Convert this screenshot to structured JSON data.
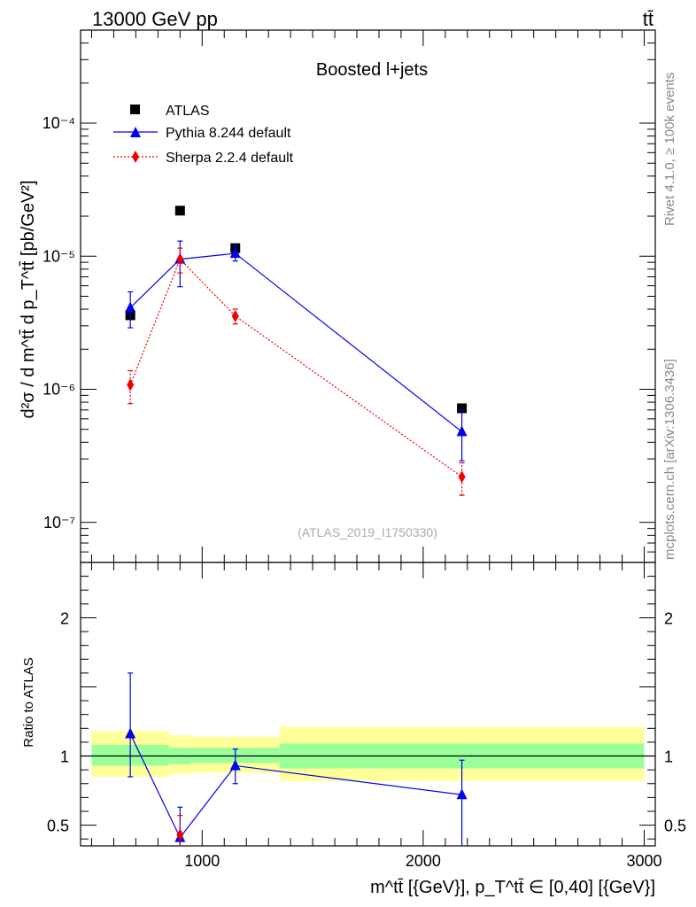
{
  "header": {
    "left": "13000 GeV pp",
    "right": "tt̄"
  },
  "side_labels": {
    "rivet": "Rivet 4.1.0, ≥ 100k events",
    "mcplots": "mcplots.cern.ch [arXiv:1306.3436]"
  },
  "chart_data": [
    {
      "type": "scatter",
      "panel": "main",
      "title": "Boosted l+jets",
      "watermark": "(ATLAS_2019_I1750330)",
      "ylabel": "d²σ / d m^tt̄ d p_T^tt̄ [pb/GeV²]",
      "yscale": "log",
      "ylim": [
        5e-08,
        0.0005
      ],
      "xlim": [
        450,
        3050
      ],
      "y_ticks": [
        {
          "value": 1e-07,
          "label": "10⁻⁷"
        },
        {
          "value": 1e-06,
          "label": "10⁻⁶"
        },
        {
          "value": 1e-05,
          "label": "10⁻⁵"
        },
        {
          "value": 0.0001,
          "label": "10⁻⁴"
        }
      ],
      "legend": [
        "ATLAS",
        "Pythia 8.244 default",
        "Sherpa 2.2.4 default"
      ],
      "series": [
        {
          "name": "ATLAS",
          "color": "#000000",
          "marker": "square",
          "points": [
            {
              "x": 675,
              "y": 3.6e-06
            },
            {
              "x": 900,
              "y": 2.2e-05
            },
            {
              "x": 1150,
              "y": 1.15e-05
            },
            {
              "x": 2175,
              "y": 7.2e-07
            }
          ]
        },
        {
          "name": "Pythia 8.244 default",
          "color": "#0000ee",
          "marker": "triangle",
          "line": "solid",
          "points": [
            {
              "x": 675,
              "y": 4.1e-06,
              "ylo": 2.9e-06,
              "yhi": 5.4e-06
            },
            {
              "x": 900,
              "y": 9.5e-06,
              "ylo": 5.9e-06,
              "yhi": 1.3e-05
            },
            {
              "x": 1150,
              "y": 1.05e-05,
              "ylo": 9.2e-06,
              "yhi": 1.2e-05
            },
            {
              "x": 2175,
              "y": 4.8e-07,
              "ylo": 2.9e-07,
              "yhi": 7e-07
            }
          ]
        },
        {
          "name": "Sherpa 2.2.4 default",
          "color": "#ee0000",
          "marker": "diamond",
          "line": "dotted",
          "points": [
            {
              "x": 675,
              "y": 1.08e-06,
              "ylo": 7.8e-07,
              "yhi": 1.38e-06
            },
            {
              "x": 900,
              "y": 9.5e-06,
              "ylo": 7.5e-06,
              "yhi": 1.15e-05
            },
            {
              "x": 1150,
              "y": 3.55e-06,
              "ylo": 3.1e-06,
              "yhi": 4e-06
            },
            {
              "x": 2175,
              "y": 2.2e-07,
              "ylo": 1.6e-07,
              "yhi": 2.8e-07
            }
          ]
        }
      ]
    },
    {
      "type": "line",
      "panel": "ratio",
      "ylabel": "Ratio to ATLAS",
      "xlabel": "m^tt̄ [{GeV}], p_T^tt̄ ∈ [0,40] [{GeV}]",
      "ylim": [
        0.35,
        2.4
      ],
      "xlim": [
        450,
        3050
      ],
      "y_ticks": [
        {
          "value": 0.5,
          "label": "0.5"
        },
        {
          "value": 1,
          "label": "1"
        },
        {
          "value": 2,
          "label": "2"
        }
      ],
      "x_ticks": [
        {
          "value": 1000,
          "label": "1000"
        },
        {
          "value": 2000,
          "label": "2000"
        },
        {
          "value": 3000,
          "label": "3000"
        }
      ],
      "bands": [
        {
          "x0": 500,
          "x1": 850,
          "yellow": [
            0.85,
            1.18
          ],
          "green": [
            0.93,
            1.08
          ]
        },
        {
          "x0": 850,
          "x1": 950,
          "yellow": [
            0.87,
            1.15
          ],
          "green": [
            0.94,
            1.06
          ]
        },
        {
          "x0": 950,
          "x1": 1350,
          "yellow": [
            0.88,
            1.14
          ],
          "green": [
            0.95,
            1.06
          ]
        },
        {
          "x0": 1350,
          "x1": 3000,
          "yellow": [
            0.82,
            1.21
          ],
          "green": [
            0.91,
            1.09
          ]
        }
      ],
      "series": [
        {
          "name": "Pythia 8.244 default",
          "color": "#0000ee",
          "marker": "triangle",
          "points": [
            {
              "x": 675,
              "y": 1.16,
              "ylo": 0.85,
              "yhi": 1.6
            },
            {
              "x": 900,
              "y": 0.41,
              "ylo": 0.3,
              "yhi": 0.63
            },
            {
              "x": 1150,
              "y": 0.93,
              "ylo": 0.8,
              "yhi": 1.05
            },
            {
              "x": 2175,
              "y": 0.72,
              "ylo": 0.3,
              "yhi": 0.97
            }
          ]
        },
        {
          "name": "Sherpa 2.2.4 default",
          "color": "#ee0000",
          "marker": "diamond",
          "points": [
            {
              "x": 900,
              "y": 0.43,
              "ylo": 0.3,
              "yhi": 0.57
            }
          ]
        }
      ]
    }
  ]
}
